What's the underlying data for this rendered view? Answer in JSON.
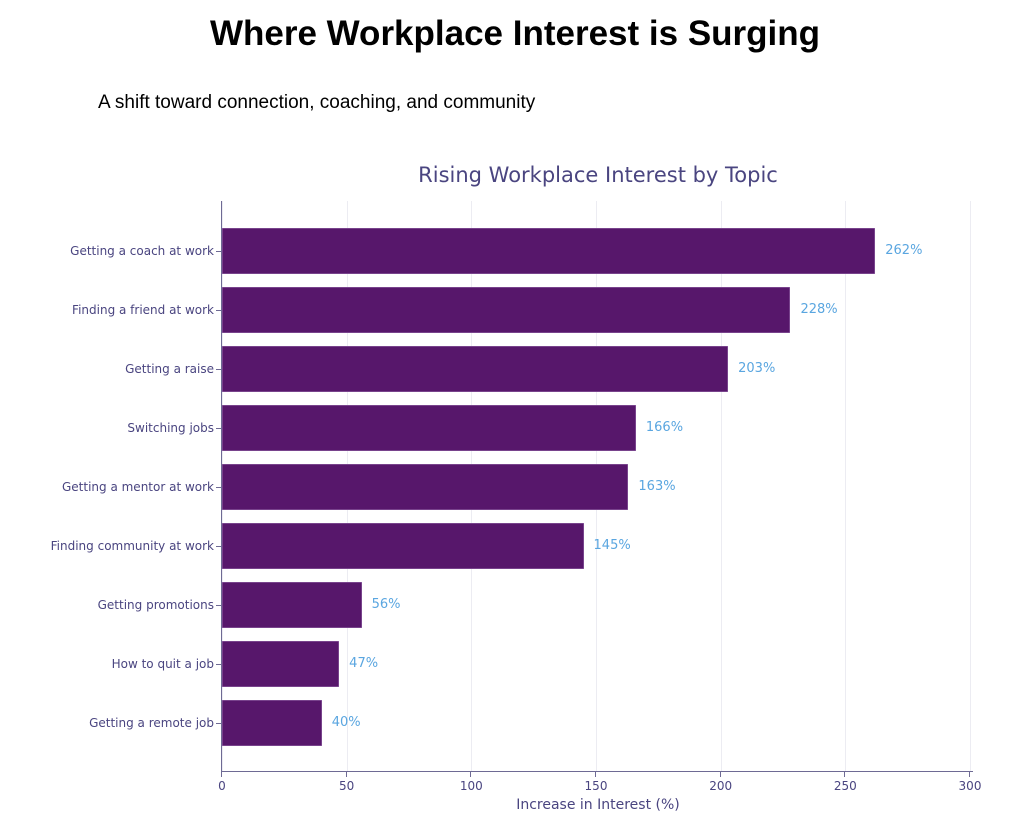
{
  "header": {
    "title": "Where Workplace Interest is Surging",
    "subtitle": "A shift toward connection, coaching, and community"
  },
  "colors": {
    "bar": "#57176b",
    "value_label": "#5aa6e0",
    "axis_text": "#4a4580"
  },
  "chart_data": {
    "type": "bar",
    "orientation": "horizontal",
    "title": "Rising Workplace Interest by Topic",
    "xlabel": "Increase in Interest (%)",
    "ylabel": "",
    "xlim": [
      0,
      300
    ],
    "xticks": [
      0,
      50,
      100,
      150,
      200,
      250,
      300
    ],
    "grid": "vertical",
    "categories": [
      "Getting a coach at work",
      "Finding a friend at work",
      "Getting a raise",
      "Switching jobs",
      "Getting a mentor at work",
      "Finding community at work",
      "Getting promotions",
      "How to quit a job",
      "Getting a remote job"
    ],
    "values": [
      262,
      228,
      203,
      166,
      163,
      145,
      56,
      47,
      40
    ],
    "value_labels": [
      "262%",
      "228%",
      "203%",
      "166%",
      "163%",
      "145%",
      "56%",
      "47%",
      "40%"
    ]
  }
}
